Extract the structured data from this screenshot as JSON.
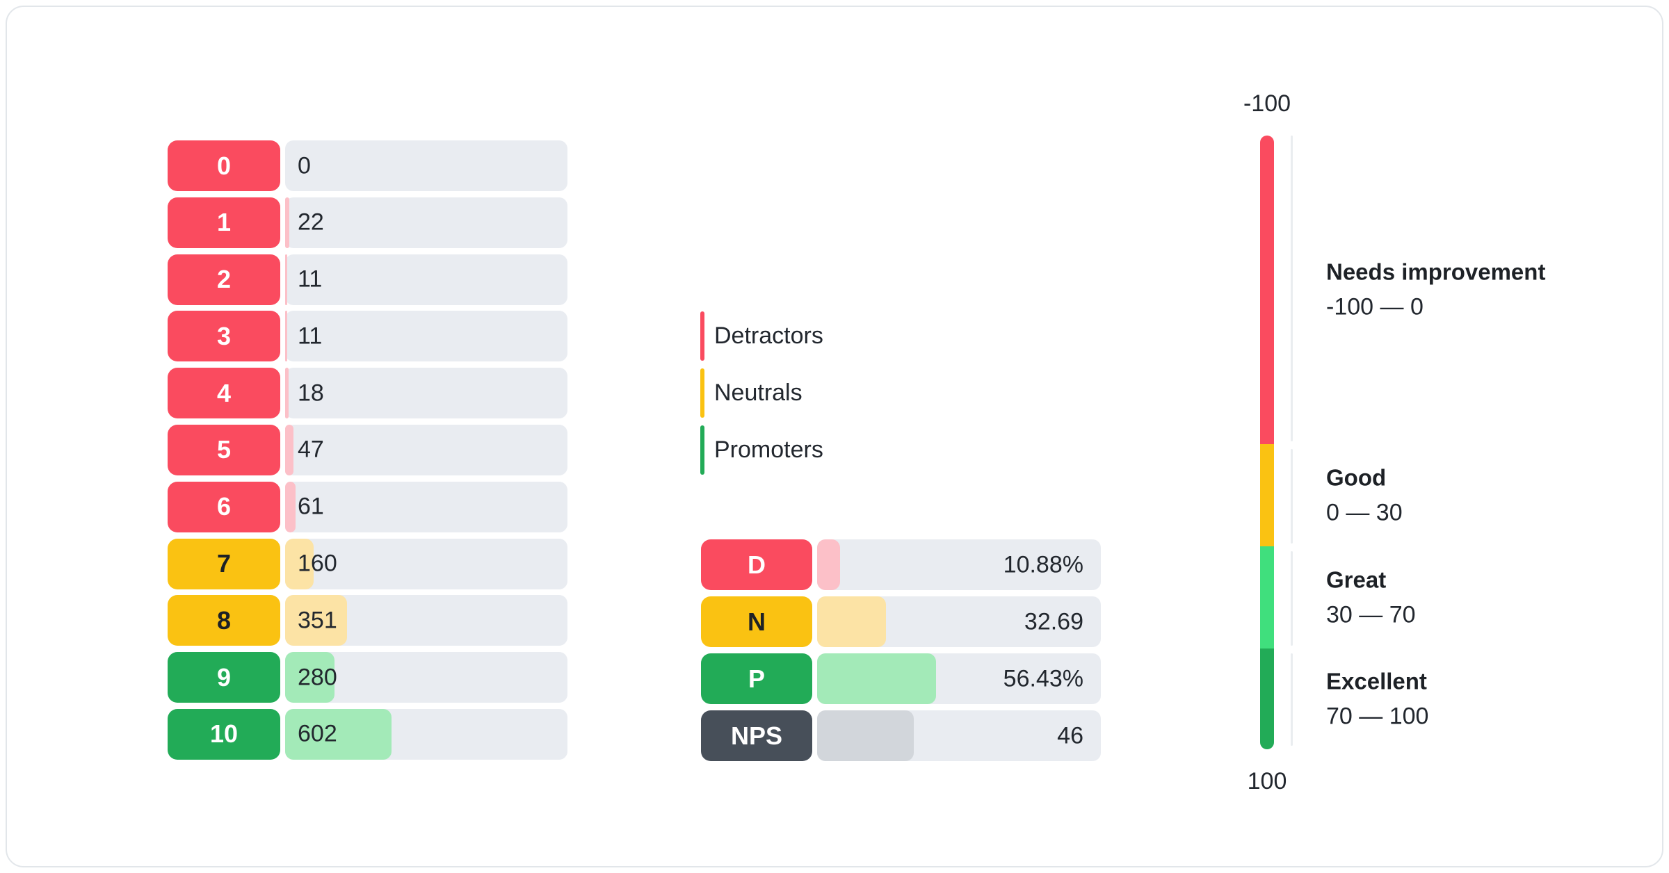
{
  "colors": {
    "detractor": "#FA4B5F",
    "detractor_tint": "#FCC0C8",
    "neutral": "#FAC212",
    "neutral_tint": "#FCE3A5",
    "promoter": "#22AB57",
    "promoter_tint": "#A3EAB8",
    "gauge_light_green": "#40DF7D",
    "nps": "#474F59",
    "nps_tint": "#D2D6DB",
    "track": "#E9ECF1",
    "text_dark": "#22272E",
    "text_black": "#1D2126"
  },
  "legend": {
    "items": [
      {
        "label": "Detractors",
        "group": "detractor"
      },
      {
        "label": "Neutrals",
        "group": "neutral"
      },
      {
        "label": "Promoters",
        "group": "promoter"
      }
    ]
  },
  "chart_data": [
    {
      "id": "score_distribution",
      "type": "bar",
      "orientation": "horizontal",
      "axis_max": 1600,
      "rows": [
        {
          "label": "0",
          "value": 0,
          "display": "0",
          "group": "detractor"
        },
        {
          "label": "1",
          "value": 22,
          "display": "22",
          "group": "detractor"
        },
        {
          "label": "2",
          "value": 11,
          "display": "11",
          "group": "detractor"
        },
        {
          "label": "3",
          "value": 11,
          "display": "11",
          "group": "detractor"
        },
        {
          "label": "4",
          "value": 18,
          "display": "18",
          "group": "detractor"
        },
        {
          "label": "5",
          "value": 47,
          "display": "47",
          "group": "detractor"
        },
        {
          "label": "6",
          "value": 61,
          "display": "61",
          "group": "detractor"
        },
        {
          "label": "7",
          "value": 160,
          "display": "160",
          "group": "neutral"
        },
        {
          "label": "8",
          "value": 351,
          "display": "351",
          "group": "neutral"
        },
        {
          "label": "9",
          "value": 280,
          "display": "280",
          "group": "promoter"
        },
        {
          "label": "10",
          "value": 602,
          "display": "602",
          "group": "promoter"
        }
      ]
    },
    {
      "id": "nps_summary",
      "type": "bar",
      "orientation": "horizontal",
      "axis_max": 135,
      "rows": [
        {
          "label": "D",
          "value": 10.88,
          "display": "10.88%",
          "group": "detractor"
        },
        {
          "label": "N",
          "value": 32.69,
          "display": "32.69",
          "group": "neutral"
        },
        {
          "label": "P",
          "value": 56.43,
          "display": "56.43%",
          "group": "promoter"
        },
        {
          "label": "NPS",
          "value": 46,
          "display": "46",
          "group": "nps"
        }
      ]
    },
    {
      "id": "nps_gauge",
      "type": "gauge",
      "axis_top_label": "-100",
      "axis_bottom_label": "100",
      "axis_range": [
        -100,
        100
      ],
      "segments": [
        {
          "name": "Needs improvement",
          "range": "-100 — 0",
          "from": -100,
          "to": 0,
          "color_key": "detractor",
          "height_pct": 50.3
        },
        {
          "name": "Good",
          "range": "0 — 30",
          "from": 0,
          "to": 30,
          "color_key": "neutral",
          "height_pct": 16.65
        },
        {
          "name": "Great",
          "range": "30 — 70",
          "from": 30,
          "to": 70,
          "color_key": "gauge_light_green",
          "height_pct": 16.65
        },
        {
          "name": "Excellent",
          "range": "70 — 100",
          "from": 70,
          "to": 100,
          "color_key": "promoter",
          "height_pct": 16.4
        }
      ]
    }
  ]
}
